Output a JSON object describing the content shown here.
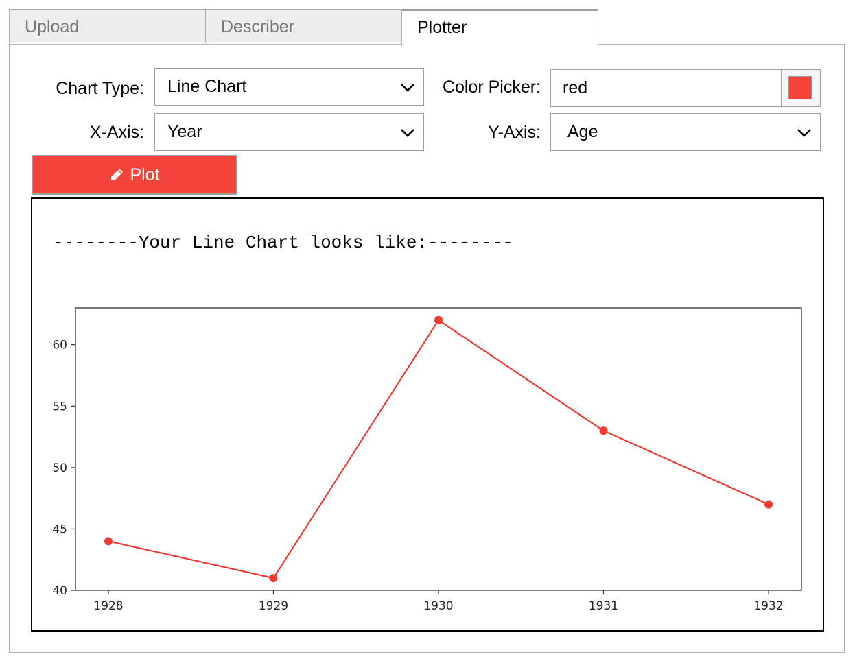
{
  "tabs": [
    {
      "label": "Upload",
      "active": false
    },
    {
      "label": "Describer",
      "active": false
    },
    {
      "label": "Plotter",
      "active": true
    }
  ],
  "controls": {
    "chart_type_label": "Chart Type:",
    "chart_type_value": "Line Chart",
    "color_label": "Color Picker:",
    "color_value": "red",
    "x_axis_label": "X-Axis:",
    "x_axis_value": "Year",
    "y_axis_label": "Y-Axis:",
    "y_axis_value": "Age",
    "plot_button_label": "Plot",
    "plot_button_icon": "pencil-icon"
  },
  "colors": {
    "accent": "#f4433b",
    "line": "#ee3b32"
  },
  "output": {
    "message": "--------Your Line Chart looks like:--------"
  },
  "chart_data": {
    "type": "line",
    "x": [
      1928,
      1929,
      1930,
      1931,
      1932
    ],
    "values": [
      44,
      41,
      62,
      53,
      47
    ],
    "xticks": [
      "1928",
      "1929",
      "1930",
      "1931",
      "1932"
    ],
    "yticks": [
      "40",
      "45",
      "50",
      "55",
      "60"
    ],
    "ylim": [
      40,
      63
    ],
    "grid": false,
    "markers": true
  }
}
